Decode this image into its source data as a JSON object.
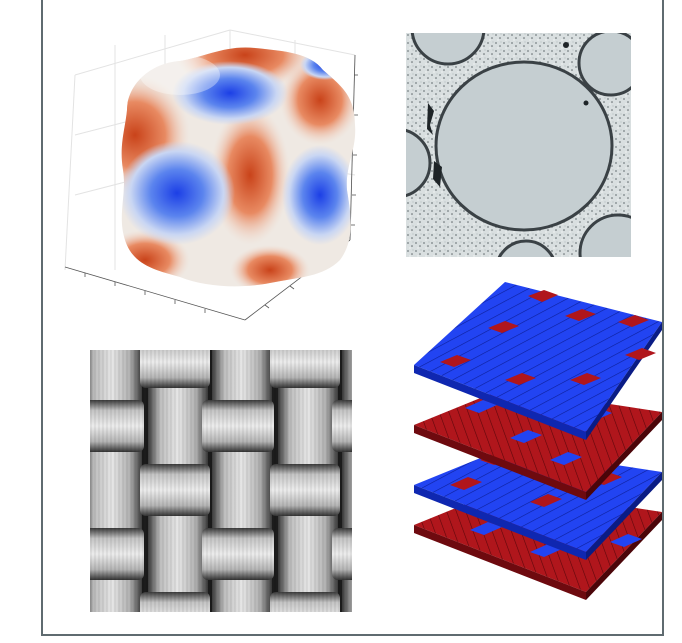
{
  "figure": {
    "panels": [
      {
        "id": "a",
        "kind": "3d-surface-plot",
        "colors": {
          "warm": "#d8572a",
          "cool": "#2f5fe0",
          "mid": "#f2efe9"
        }
      },
      {
        "id": "b",
        "kind": "micrograph-circles",
        "colors": {
          "fill": "#c7d0d3",
          "ring": "#3d4448",
          "matrix": "#dfe4e5"
        }
      },
      {
        "id": "c",
        "kind": "woven-fabric-micrograph",
        "colors": {
          "light": "#e2e2e2",
          "dark": "#2b2b2b"
        }
      },
      {
        "id": "d",
        "kind": "stacked-woven-layers",
        "colors": {
          "blue": "#1f3df0",
          "red": "#a8121a"
        },
        "layers": 4
      }
    ]
  }
}
